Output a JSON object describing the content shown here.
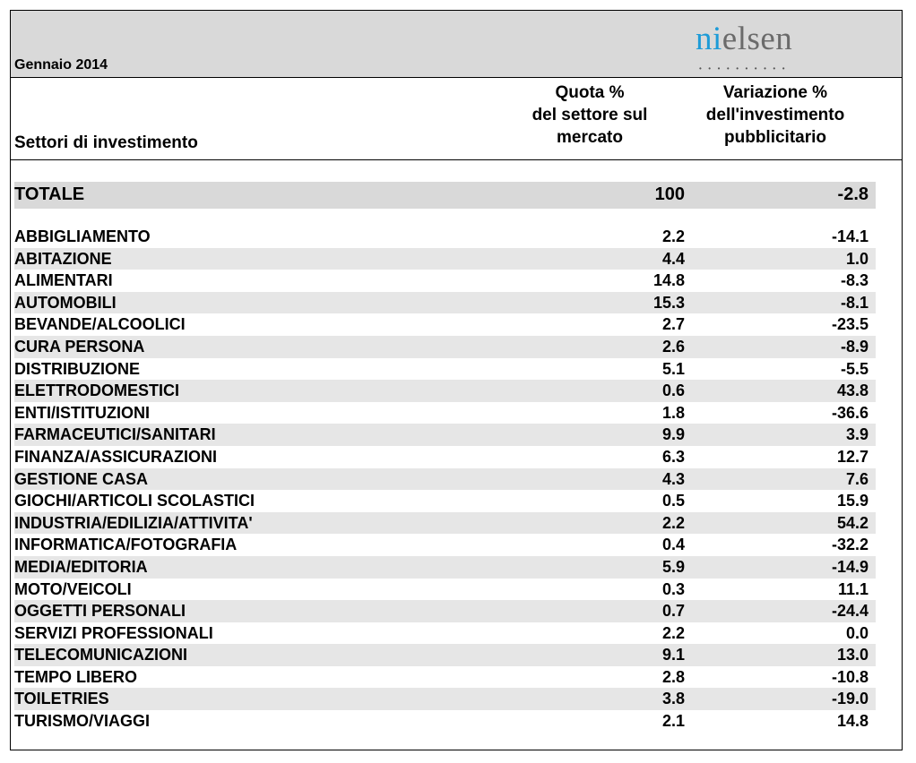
{
  "header": {
    "period": "Gennaio 2014",
    "logo_text_accent": "ni",
    "logo_text_rest": "elsen",
    "logo_dots": "••••••••••",
    "col_sector": "Settori di investimento",
    "col_quota": [
      "Quota %",
      "del settore sul",
      "mercato"
    ],
    "col_variazione": [
      "Variazione %",
      "dell'investimento",
      "pubblicitario"
    ]
  },
  "colors": {
    "band": "#d9d9d9",
    "row_shade": "#e6e6e6",
    "logo_accent": "#1d9bd7",
    "logo_grey": "#6b6b6b"
  },
  "total": {
    "label": "TOTALE",
    "quota": "100",
    "variazione": "-2.8"
  },
  "rows": [
    {
      "label": "ABBIGLIAMENTO",
      "quota": "2.2",
      "variazione": "-14.1"
    },
    {
      "label": "ABITAZIONE",
      "quota": "4.4",
      "variazione": "1.0"
    },
    {
      "label": "ALIMENTARI",
      "quota": "14.8",
      "variazione": "-8.3"
    },
    {
      "label": "AUTOMOBILI",
      "quota": "15.3",
      "variazione": "-8.1"
    },
    {
      "label": "BEVANDE/ALCOOLICI",
      "quota": "2.7",
      "variazione": "-23.5"
    },
    {
      "label": "CURA PERSONA",
      "quota": "2.6",
      "variazione": "-8.9"
    },
    {
      "label": "DISTRIBUZIONE",
      "quota": "5.1",
      "variazione": "-5.5"
    },
    {
      "label": "ELETTRODOMESTICI",
      "quota": "0.6",
      "variazione": "43.8"
    },
    {
      "label": "ENTI/ISTITUZIONI",
      "quota": "1.8",
      "variazione": "-36.6"
    },
    {
      "label": "FARMACEUTICI/SANITARI",
      "quota": "9.9",
      "variazione": "3.9"
    },
    {
      "label": "FINANZA/ASSICURAZIONI",
      "quota": "6.3",
      "variazione": "12.7"
    },
    {
      "label": "GESTIONE CASA",
      "quota": "4.3",
      "variazione": "7.6"
    },
    {
      "label": "GIOCHI/ARTICOLI SCOLASTICI",
      "quota": "0.5",
      "variazione": "15.9"
    },
    {
      "label": "INDUSTRIA/EDILIZIA/ATTIVITA'",
      "quota": "2.2",
      "variazione": "54.2"
    },
    {
      "label": "INFORMATICA/FOTOGRAFIA",
      "quota": "0.4",
      "variazione": "-32.2"
    },
    {
      "label": "MEDIA/EDITORIA",
      "quota": "5.9",
      "variazione": "-14.9"
    },
    {
      "label": "MOTO/VEICOLI",
      "quota": "0.3",
      "variazione": "11.1"
    },
    {
      "label": "OGGETTI PERSONALI",
      "quota": "0.7",
      "variazione": "-24.4"
    },
    {
      "label": "SERVIZI PROFESSIONALI",
      "quota": "2.2",
      "variazione": "0.0"
    },
    {
      "label": "TELECOMUNICAZIONI",
      "quota": "9.1",
      "variazione": "13.0"
    },
    {
      "label": "TEMPO LIBERO",
      "quota": "2.8",
      "variazione": "-10.8"
    },
    {
      "label": "TOILETRIES",
      "quota": "3.8",
      "variazione": "-19.0"
    },
    {
      "label": "TURISMO/VIAGGI",
      "quota": "2.1",
      "variazione": "14.8"
    }
  ]
}
